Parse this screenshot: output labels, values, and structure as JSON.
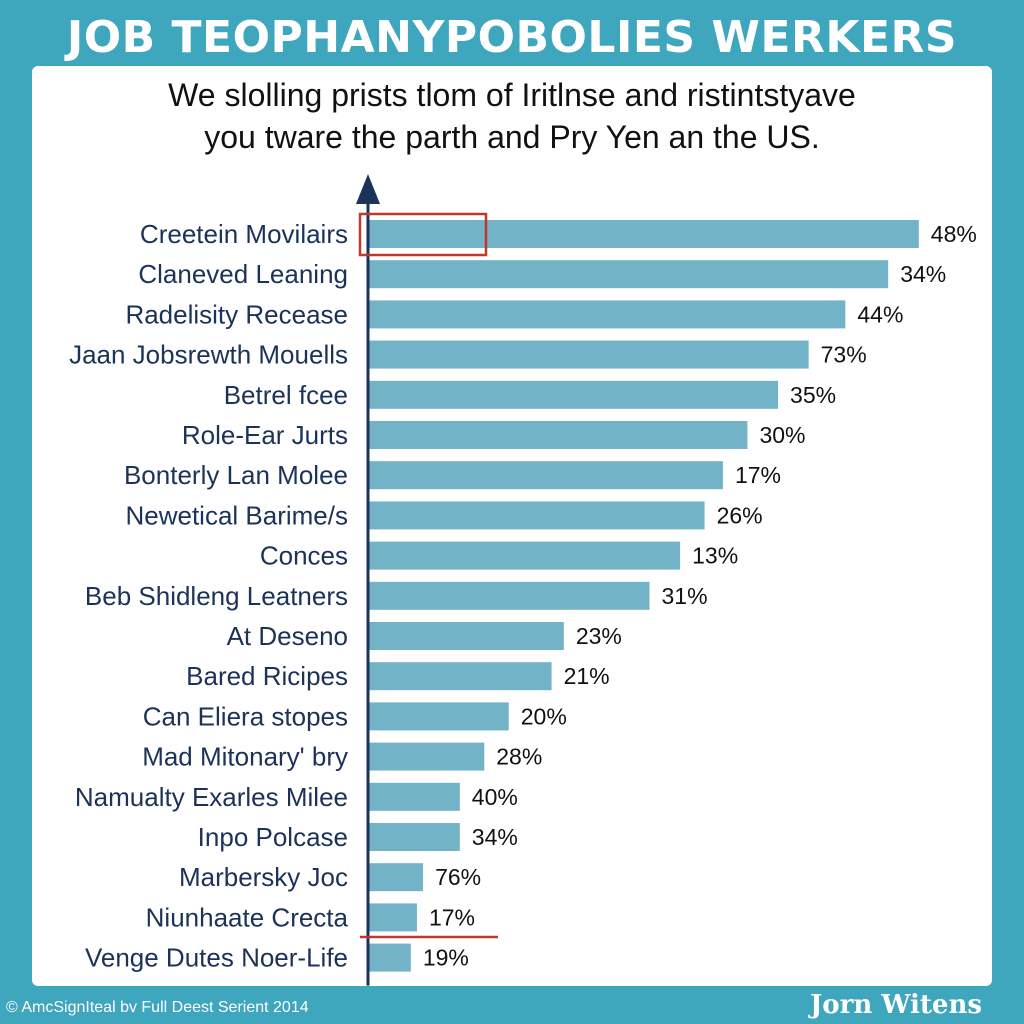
{
  "title": "JOB TEOPHANYPOBOLIES WERKERS",
  "subtitle_lines": [
    "We slolling prists tlom of Iritlnse and ristintstyave",
    "you tware the parth and Pry Yen an the US."
  ],
  "footer": {
    "left": "© AmcSignIteal bv Full Deest Serient 2014",
    "right": "Jorn Witens"
  },
  "colors": {
    "background": "#3ea6bd",
    "bar": "#73b3c7",
    "label": "#1b3358",
    "axis": "#1b3358",
    "highlight": "#c0392b"
  },
  "chart_data": {
    "type": "bar",
    "orientation": "horizontal",
    "categories": [
      "Creetein Movilairs",
      "Claneved Leaning",
      "Radelisity Recease",
      "Jaan Jobsrewth Mouells",
      "Betrel fcee",
      "Role-Ear Jurts",
      "Bonterly Lan Molee",
      "Newetical Barime/s",
      "Conces",
      "Beb Shidleng Leatners",
      "At Deseno",
      "Bared Ricipes",
      "Can Eliera stopes",
      "Mad Mitonary' bry",
      "Namualty Exarles Milee",
      "Inpo Polcase",
      "Marbersky Joc",
      "Niunhaate Crecta",
      "Venge Dutes Noer-Life"
    ],
    "labels": [
      "48%",
      "34%",
      "44%",
      "73%",
      "35%",
      "30%",
      "17%",
      "26%",
      "13%",
      "31%",
      "23%",
      "21%",
      "20%",
      "28%",
      "40%",
      "34%",
      "76%",
      "17%",
      "19%"
    ],
    "bar_lengths": [
      0.9,
      0.85,
      0.78,
      0.72,
      0.67,
      0.62,
      0.58,
      0.55,
      0.51,
      0.46,
      0.32,
      0.3,
      0.23,
      0.19,
      0.15,
      0.15,
      0.09,
      0.08,
      0.07
    ],
    "grid": false,
    "legend": "none"
  }
}
